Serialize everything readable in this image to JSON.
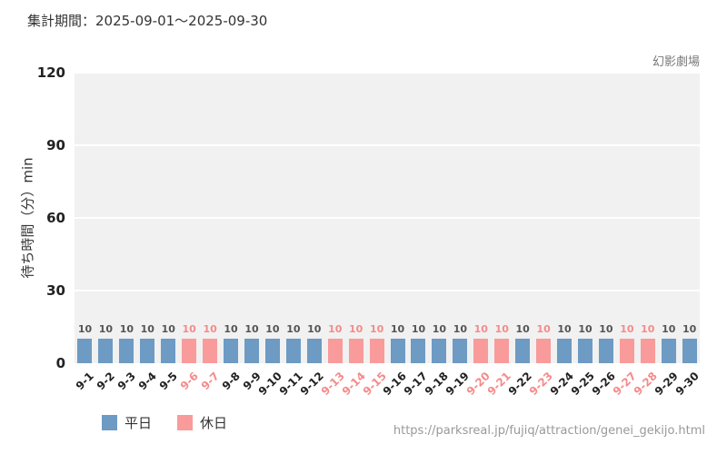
{
  "header": {
    "period": "集計期間：2025-09-01～2025-09-30"
  },
  "footer": {
    "url": "https://parksreal.jp/fujiq/attraction/genei_gekijo.html"
  },
  "chart_data": {
    "type": "bar",
    "title": "幻影劇場",
    "ylabel": "待ち時間（分）min",
    "ylim": [
      0,
      120
    ],
    "yticks": [
      0,
      30,
      60,
      90,
      120
    ],
    "grid": true,
    "legend_position": "bottom-left",
    "categories": [
      "9-1",
      "9-2",
      "9-3",
      "9-4",
      "9-5",
      "9-6",
      "9-7",
      "9-8",
      "9-9",
      "9-10",
      "9-11",
      "9-12",
      "9-13",
      "9-14",
      "9-15",
      "9-16",
      "9-17",
      "9-18",
      "9-19",
      "9-20",
      "9-21",
      "9-22",
      "9-23",
      "9-24",
      "9-25",
      "9-26",
      "9-27",
      "9-28",
      "9-29",
      "9-30"
    ],
    "values": [
      10,
      10,
      10,
      10,
      10,
      10,
      10,
      10,
      10,
      10,
      10,
      10,
      10,
      10,
      10,
      10,
      10,
      10,
      10,
      10,
      10,
      10,
      10,
      10,
      10,
      10,
      10,
      10,
      10,
      10
    ],
    "day_types": [
      "weekday",
      "weekday",
      "weekday",
      "weekday",
      "weekday",
      "holiday",
      "holiday",
      "weekday",
      "weekday",
      "weekday",
      "weekday",
      "weekday",
      "holiday",
      "holiday",
      "holiday",
      "weekday",
      "weekday",
      "weekday",
      "weekday",
      "holiday",
      "holiday",
      "weekday",
      "holiday",
      "weekday",
      "weekday",
      "weekday",
      "holiday",
      "holiday",
      "weekday",
      "weekday"
    ],
    "legend": [
      {
        "label": "平日",
        "color": "#6d9bc3"
      },
      {
        "label": "休日",
        "color": "#f99b9b"
      }
    ],
    "colors": {
      "weekday": "#6d9bc3",
      "holiday": "#f99b9b",
      "weekday_label": "#555555",
      "holiday_label": "#f48b8b",
      "weekday_tick": "#222222",
      "holiday_tick": "#f48b8b",
      "plot_bg": "#f1f1f1"
    }
  }
}
